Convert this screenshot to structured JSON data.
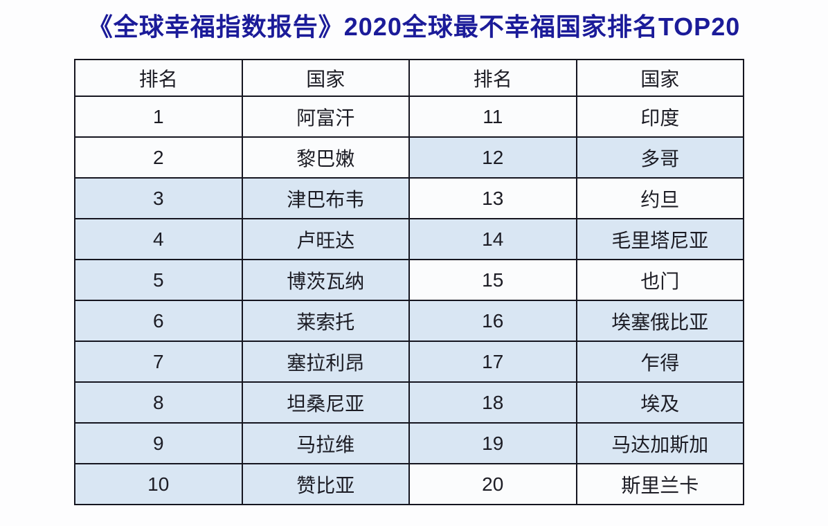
{
  "page": {
    "background": "#fdfdfe"
  },
  "title": {
    "text": "《全球幸福指数报告》2020全球最不幸福国家排名TOP20",
    "color": "#1b1b99"
  },
  "table": {
    "headers": {
      "rank_left": "排名",
      "country_left": "国家",
      "rank_right": "排名",
      "country_right": "国家"
    },
    "colors": {
      "row_blue": "#d9e6f3",
      "row_white": "#fbfcfd",
      "border": "#15151f",
      "cell_text": "#1c1c24"
    },
    "rows": [
      {
        "rank_left": "1",
        "country_left": "阿富汗",
        "rank_right": "11",
        "country_right": "印度"
      },
      {
        "rank_left": "2",
        "country_left": "黎巴嫩",
        "rank_right": "12",
        "country_right": "多哥"
      },
      {
        "rank_left": "3",
        "country_left": "津巴布韦",
        "rank_right": "13",
        "country_right": "约旦"
      },
      {
        "rank_left": "4",
        "country_left": "卢旺达",
        "rank_right": "14",
        "country_right": "毛里塔尼亚"
      },
      {
        "rank_left": "5",
        "country_left": "博茨瓦纳",
        "rank_right": "15",
        "country_right": "也门"
      },
      {
        "rank_left": "6",
        "country_left": "莱索托",
        "rank_right": "16",
        "country_right": "埃塞俄比亚"
      },
      {
        "rank_left": "7",
        "country_left": "塞拉利昂",
        "rank_right": "17",
        "country_right": "乍得"
      },
      {
        "rank_left": "8",
        "country_left": "坦桑尼亚",
        "rank_right": "18",
        "country_right": "埃及"
      },
      {
        "rank_left": "9",
        "country_left": "马拉维",
        "rank_right": "19",
        "country_right": "马达加斯加"
      },
      {
        "rank_left": "10",
        "country_left": "赞比亚",
        "rank_right": "20",
        "country_right": "斯里兰卡"
      }
    ]
  }
}
